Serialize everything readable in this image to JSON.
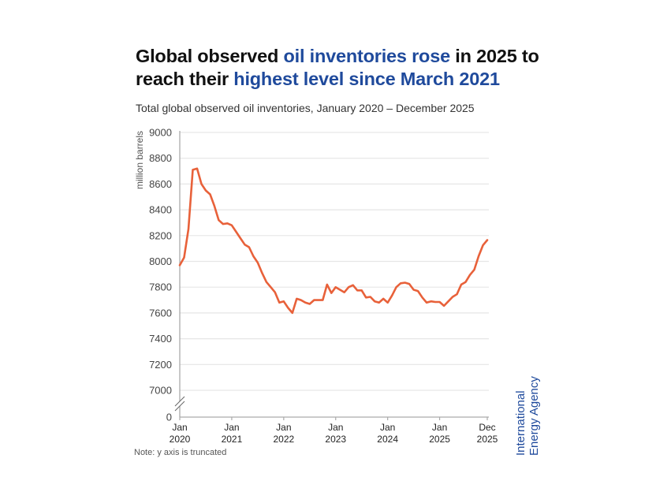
{
  "title": {
    "parts": [
      {
        "text": "Global observed ",
        "highlight": false
      },
      {
        "text": "oil inventories rose",
        "highlight": true
      },
      {
        "text": " in 2025 to reach their ",
        "highlight": false
      },
      {
        "text": "highest level since March 2021",
        "highlight": true
      }
    ]
  },
  "subtitle": "Total global observed oil inventories, January 2020 – December 2025",
  "note": "Note: y axis is truncated",
  "brand": {
    "line1": "International",
    "line2": "Energy Agency"
  },
  "colors": {
    "line": "#e8613a",
    "highlight": "#1f4a9c",
    "grid": "#e6e6e6",
    "axis": "#aaaaaa"
  },
  "chart_data": {
    "type": "line",
    "title": "Total global observed oil inventories, January 2020 – December 2025",
    "xlabel": "",
    "ylabel": "million barrels",
    "ylim": [
      7000,
      9000
    ],
    "y_axis_break": true,
    "y_ticks": [
      "9000",
      "8800",
      "8600",
      "8400",
      "8200",
      "8000",
      "7800",
      "7600",
      "7400",
      "7200",
      "7000",
      "0"
    ],
    "y_tick_values": [
      9000,
      8800,
      8600,
      8400,
      8200,
      8000,
      7800,
      7600,
      7400,
      7200,
      7000
    ],
    "x_ticks": [
      {
        "month_index": 0,
        "line1": "Jan",
        "line2": "2020"
      },
      {
        "month_index": 12,
        "line1": "Jan",
        "line2": "2021"
      },
      {
        "month_index": 24,
        "line1": "Jan",
        "line2": "2022"
      },
      {
        "month_index": 36,
        "line1": "Jan",
        "line2": "2023"
      },
      {
        "month_index": 48,
        "line1": "Jan",
        "line2": "2024"
      },
      {
        "month_index": 60,
        "line1": "Jan",
        "line2": "2025"
      },
      {
        "month_index": 71,
        "line1": "Dec",
        "line2": "2025"
      }
    ],
    "grid": true,
    "legend": "none",
    "series": [
      {
        "name": "Total global observed oil inventories",
        "start": "Jan 2020",
        "frequency": "monthly",
        "values": [
          7970,
          8030,
          8250,
          8710,
          8720,
          8600,
          8550,
          8520,
          8430,
          8320,
          8290,
          8295,
          8280,
          8230,
          8180,
          8130,
          8110,
          8040,
          7990,
          7910,
          7840,
          7800,
          7760,
          7680,
          7690,
          7640,
          7600,
          7710,
          7700,
          7680,
          7670,
          7700,
          7700,
          7700,
          7820,
          7755,
          7800,
          7780,
          7760,
          7800,
          7815,
          7775,
          7775,
          7720,
          7725,
          7690,
          7680,
          7710,
          7680,
          7735,
          7800,
          7830,
          7835,
          7825,
          7780,
          7770,
          7720,
          7680,
          7690,
          7685,
          7685,
          7655,
          7690,
          7725,
          7745,
          7820,
          7840,
          7895,
          7935,
          8040,
          8125,
          8165
        ]
      }
    ]
  }
}
